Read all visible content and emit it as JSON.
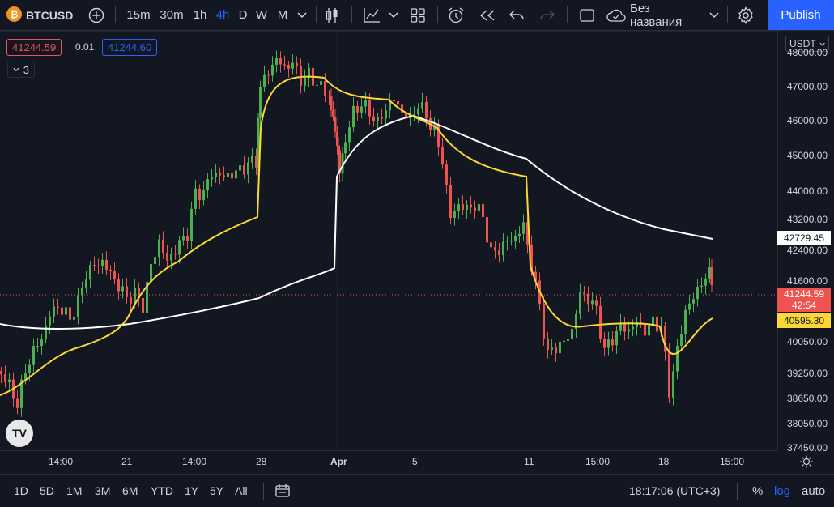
{
  "toolbar": {
    "symbol": "BTCUSD",
    "symbol_logo": "₿",
    "add_icon": "plus-circle-icon",
    "intervals": [
      "15m",
      "30m",
      "1h",
      "4h",
      "D",
      "W",
      "M"
    ],
    "active_interval": "4h",
    "layout_name": "Без названия",
    "publish_label": "Publish"
  },
  "legend": {
    "bid": "41244.59",
    "spread": "0.01",
    "ask": "41244.60",
    "indicators_count": "3"
  },
  "price_axis": {
    "currency": "USDT",
    "ticks": [
      "48000.00",
      "47000.00",
      "46000.00",
      "45000.00",
      "44000.00",
      "43200.00",
      "42400.00",
      "41600.00",
      "40050.00",
      "39250.00",
      "38650.00",
      "38050.00",
      "37450.00"
    ],
    "tag_white": "42729.45",
    "tag_last": "41244.59",
    "tag_countdown": "42:54",
    "tag_yellow": "40595.30"
  },
  "time_axis": {
    "ticks": [
      "14:00",
      "21",
      "14:00",
      "28",
      "Apr",
      "5",
      "11",
      "15:00",
      "18",
      "15:00"
    ]
  },
  "bottom": {
    "ranges": [
      "1D",
      "5D",
      "1M",
      "3M",
      "6M",
      "YTD",
      "1Y",
      "5Y",
      "All"
    ],
    "clock": "18:17:06 (UTC+3)",
    "percent": "%",
    "log": "log",
    "auto": "auto"
  },
  "colors": {
    "background": "#131722",
    "up": "#26a69a",
    "up_candle": "#4caf50",
    "down": "#ef5350",
    "accent": "#2962ff",
    "ma_white": "#ffffff",
    "ma_yellow": "#fdd835"
  },
  "watermark": "TV"
}
